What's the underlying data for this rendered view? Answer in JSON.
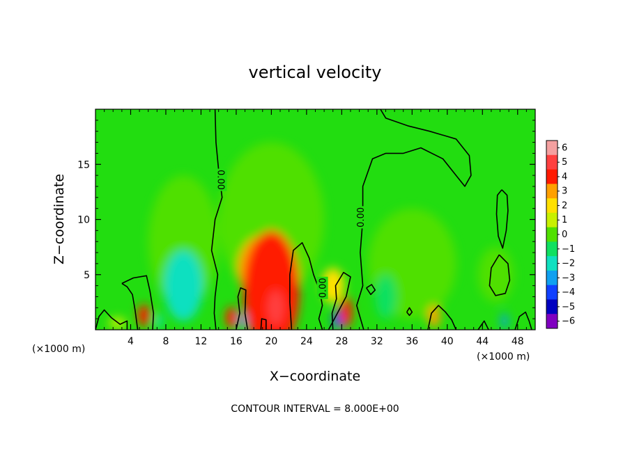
{
  "chart_data": {
    "type": "heatmap",
    "title": "vertical velocity",
    "xlabel": "X−coordinate",
    "ylabel": "Z−coordinate",
    "x_unit_left": "(×1000 m)",
    "x_unit_right": "(×1000 m)",
    "xlim": [
      0,
      50
    ],
    "ylim": [
      0,
      20
    ],
    "x_ticks": [
      4,
      8,
      12,
      16,
      20,
      24,
      28,
      32,
      36,
      40,
      44,
      48
    ],
    "y_ticks": [
      5,
      10,
      15
    ],
    "colorbar": {
      "levels": [
        "6",
        "5",
        "4",
        "3",
        "2",
        "1",
        "0",
        "−1",
        "−2",
        "−3",
        "−4",
        "−5",
        "−6"
      ],
      "colors": [
        "#f4a0a0",
        "#ff4040",
        "#ff1a00",
        "#ffa000",
        "#ffe000",
        "#c8f000",
        "#50e000",
        "#10e060",
        "#10e0c0",
        "#10a0f0",
        "#1040ff",
        "#0000c0",
        "#8000c0"
      ]
    },
    "background_color": "#22dd10",
    "anomalies": [
      {
        "x": 20,
        "z": 3.5,
        "rx": 3.2,
        "rz": 5.5,
        "value": 4.0
      },
      {
        "x": 19,
        "z": 5.5,
        "rx": 2.8,
        "rz": 3.0,
        "value": 2.6
      },
      {
        "x": 20.5,
        "z": 2.0,
        "rx": 0.9,
        "rz": 1.6,
        "value": 4.8
      },
      {
        "x": 20,
        "z": 10,
        "rx": 6,
        "rz": 7,
        "value": 0.45
      },
      {
        "x": 5.5,
        "z": 1.3,
        "rx": 0.7,
        "rz": 1.0,
        "value": 3.8
      },
      {
        "x": 15.5,
        "z": 1.1,
        "rx": 0.7,
        "rz": 1.0,
        "value": 3.6
      },
      {
        "x": 28.5,
        "z": 1.6,
        "rx": 0.7,
        "rz": 1.4,
        "value": 4.2
      },
      {
        "x": 27,
        "z": 4.0,
        "rx": 1.3,
        "rz": 1.6,
        "value": 2.2
      },
      {
        "x": 38.5,
        "z": 1.2,
        "rx": 0.7,
        "rz": 1.0,
        "value": 3.2
      },
      {
        "x": 10,
        "z": 4.0,
        "rx": 2.2,
        "rz": 3.2,
        "value": -1.7
      },
      {
        "x": 10,
        "z": 8.0,
        "rx": 4.0,
        "rz": 6.0,
        "value": -0.4
      },
      {
        "x": 33,
        "z": 3.0,
        "rx": 1.2,
        "rz": 2.0,
        "value": -1.2
      },
      {
        "x": 36,
        "z": 6.0,
        "rx": 5.0,
        "rz": 5.0,
        "value": -0.35
      },
      {
        "x": 27.5,
        "z": 0.9,
        "rx": 0.5,
        "rz": 0.8,
        "value": -3.5
      },
      {
        "x": 16.7,
        "z": 0.8,
        "rx": 0.4,
        "rz": 0.7,
        "value": -2.6
      },
      {
        "x": 7.2,
        "z": 0.8,
        "rx": 0.4,
        "rz": 0.7,
        "value": -2.2
      },
      {
        "x": 46.5,
        "z": 0.8,
        "rx": 0.4,
        "rz": 0.7,
        "value": -2.5
      },
      {
        "x": 45.5,
        "z": 5.0,
        "rx": 2.0,
        "rz": 2.5,
        "value": 0.5
      },
      {
        "x": 2.5,
        "z": 0.6,
        "rx": 1.0,
        "rz": 0.5,
        "value": 0.8
      }
    ],
    "contours": [
      {
        "label": "0.00",
        "label_at": [
          14.3,
          13.6
        ],
        "label_rotate": 90,
        "points": [
          [
            13.6,
            20
          ],
          [
            13.7,
            17
          ],
          [
            14.0,
            14.5
          ],
          [
            14.4,
            12
          ],
          [
            13.6,
            10
          ],
          [
            13.2,
            7.2
          ],
          [
            13.9,
            5
          ],
          [
            13.6,
            3
          ],
          [
            13.5,
            1.5
          ],
          [
            13.7,
            0
          ]
        ]
      },
      {
        "label": "0.00",
        "label_at": [
          30.1,
          10.2
        ],
        "label_rotate": -90,
        "points": [
          [
            30.5,
            0
          ],
          [
            29.7,
            2.2
          ],
          [
            30.4,
            4
          ],
          [
            30.1,
            7
          ],
          [
            30.4,
            10
          ],
          [
            30.4,
            13
          ],
          [
            31.5,
            15.5
          ],
          [
            33,
            16
          ],
          [
            35,
            16
          ],
          [
            37,
            16.5
          ],
          [
            39.5,
            15.5
          ],
          [
            41,
            14
          ],
          [
            42,
            13
          ],
          [
            42.7,
            14
          ],
          [
            42.5,
            15.8
          ],
          [
            41,
            17.3
          ],
          [
            38,
            18
          ],
          [
            35.5,
            18.5
          ],
          [
            33,
            19.2
          ],
          [
            32.4,
            20
          ]
        ]
      },
      {
        "label": "0.00",
        "label_at": [
          25.8,
          3.8
        ],
        "label_rotate": -90,
        "points": [
          [
            22.3,
            0
          ],
          [
            22.1,
            2.5
          ],
          [
            22.1,
            5
          ],
          [
            22.5,
            7.2
          ],
          [
            23.5,
            7.9
          ],
          [
            24.3,
            6.5
          ],
          [
            24.8,
            5
          ],
          [
            25.5,
            3.5
          ],
          [
            25.8,
            2.2
          ],
          [
            25.4,
            1
          ],
          [
            25.8,
            0
          ]
        ]
      },
      {
        "points": [
          [
            16,
            0
          ],
          [
            16.4,
            1.5
          ],
          [
            16.2,
            3
          ],
          [
            16.5,
            3.8
          ],
          [
            17.1,
            3.6
          ],
          [
            17.0,
            1.5
          ],
          [
            17.3,
            0
          ]
        ]
      },
      {
        "points": [
          [
            18.8,
            0
          ],
          [
            18.9,
            1
          ],
          [
            19.4,
            0.9
          ],
          [
            19.4,
            0
          ]
        ]
      },
      {
        "points": [
          [
            0,
            0
          ],
          [
            0.4,
            1.2
          ],
          [
            1.0,
            1.8
          ],
          [
            1.8,
            1.1
          ],
          [
            2.8,
            0.5
          ],
          [
            3.6,
            0.8
          ],
          [
            3.6,
            0
          ]
        ]
      },
      {
        "points": [
          [
            3.0,
            4.2
          ],
          [
            4.3,
            4.7
          ],
          [
            5.8,
            4.9
          ],
          [
            6.2,
            3.5
          ],
          [
            6.6,
            1.5
          ],
          [
            6.5,
            0
          ]
        ]
      },
      {
        "points": [
          [
            4.8,
            0
          ],
          [
            4.5,
            1.8
          ],
          [
            4.2,
            3.2
          ],
          [
            3.6,
            3.9
          ],
          [
            3.0,
            4.2
          ]
        ]
      },
      {
        "points": [
          [
            26.5,
            0
          ],
          [
            27.5,
            1.5
          ],
          [
            28.5,
            3.0
          ],
          [
            29.0,
            4.8
          ],
          [
            28.2,
            5.2
          ],
          [
            27.3,
            4.0
          ],
          [
            27.4,
            2.8
          ],
          [
            26.9,
            1.5
          ],
          [
            27.0,
            0
          ]
        ]
      },
      {
        "points": [
          [
            30.8,
            3.8
          ],
          [
            31.4,
            4.1
          ],
          [
            31.8,
            3.6
          ],
          [
            31.3,
            3.2
          ],
          [
            30.8,
            3.8
          ]
        ]
      },
      {
        "points": [
          [
            37.8,
            0
          ],
          [
            38.2,
            1.5
          ],
          [
            39.0,
            2.2
          ],
          [
            39.8,
            1.6
          ],
          [
            40.5,
            0.9
          ],
          [
            41.0,
            0
          ]
        ]
      },
      {
        "points": [
          [
            35.4,
            1.6
          ],
          [
            35.7,
            2.0
          ],
          [
            36.0,
            1.6
          ],
          [
            35.7,
            1.3
          ],
          [
            35.4,
            1.6
          ]
        ]
      },
      {
        "points": [
          [
            46.2,
            12.7
          ],
          [
            46.8,
            12.2
          ],
          [
            46.9,
            10.8
          ],
          [
            46.7,
            9.0
          ],
          [
            46.3,
            7.4
          ],
          [
            45.8,
            8.5
          ],
          [
            45.6,
            10.5
          ],
          [
            45.7,
            12.2
          ],
          [
            46.2,
            12.7
          ]
        ]
      },
      {
        "points": [
          [
            45.9,
            6.8
          ],
          [
            46.9,
            6.0
          ],
          [
            47.1,
            4.5
          ],
          [
            46.6,
            3.3
          ],
          [
            45.5,
            3.1
          ],
          [
            44.8,
            4.0
          ],
          [
            45.0,
            5.6
          ],
          [
            45.9,
            6.8
          ]
        ]
      },
      {
        "points": [
          [
            43.5,
            0
          ],
          [
            44.2,
            0.8
          ],
          [
            44.7,
            0
          ]
        ]
      },
      {
        "points": [
          [
            47.7,
            0
          ],
          [
            48.2,
            1.2
          ],
          [
            48.9,
            1.6
          ],
          [
            49.3,
            0.8
          ],
          [
            49.6,
            0
          ]
        ]
      }
    ]
  },
  "footer": {
    "contour_interval": "CONTOUR INTERVAL =  8.000E+00"
  }
}
